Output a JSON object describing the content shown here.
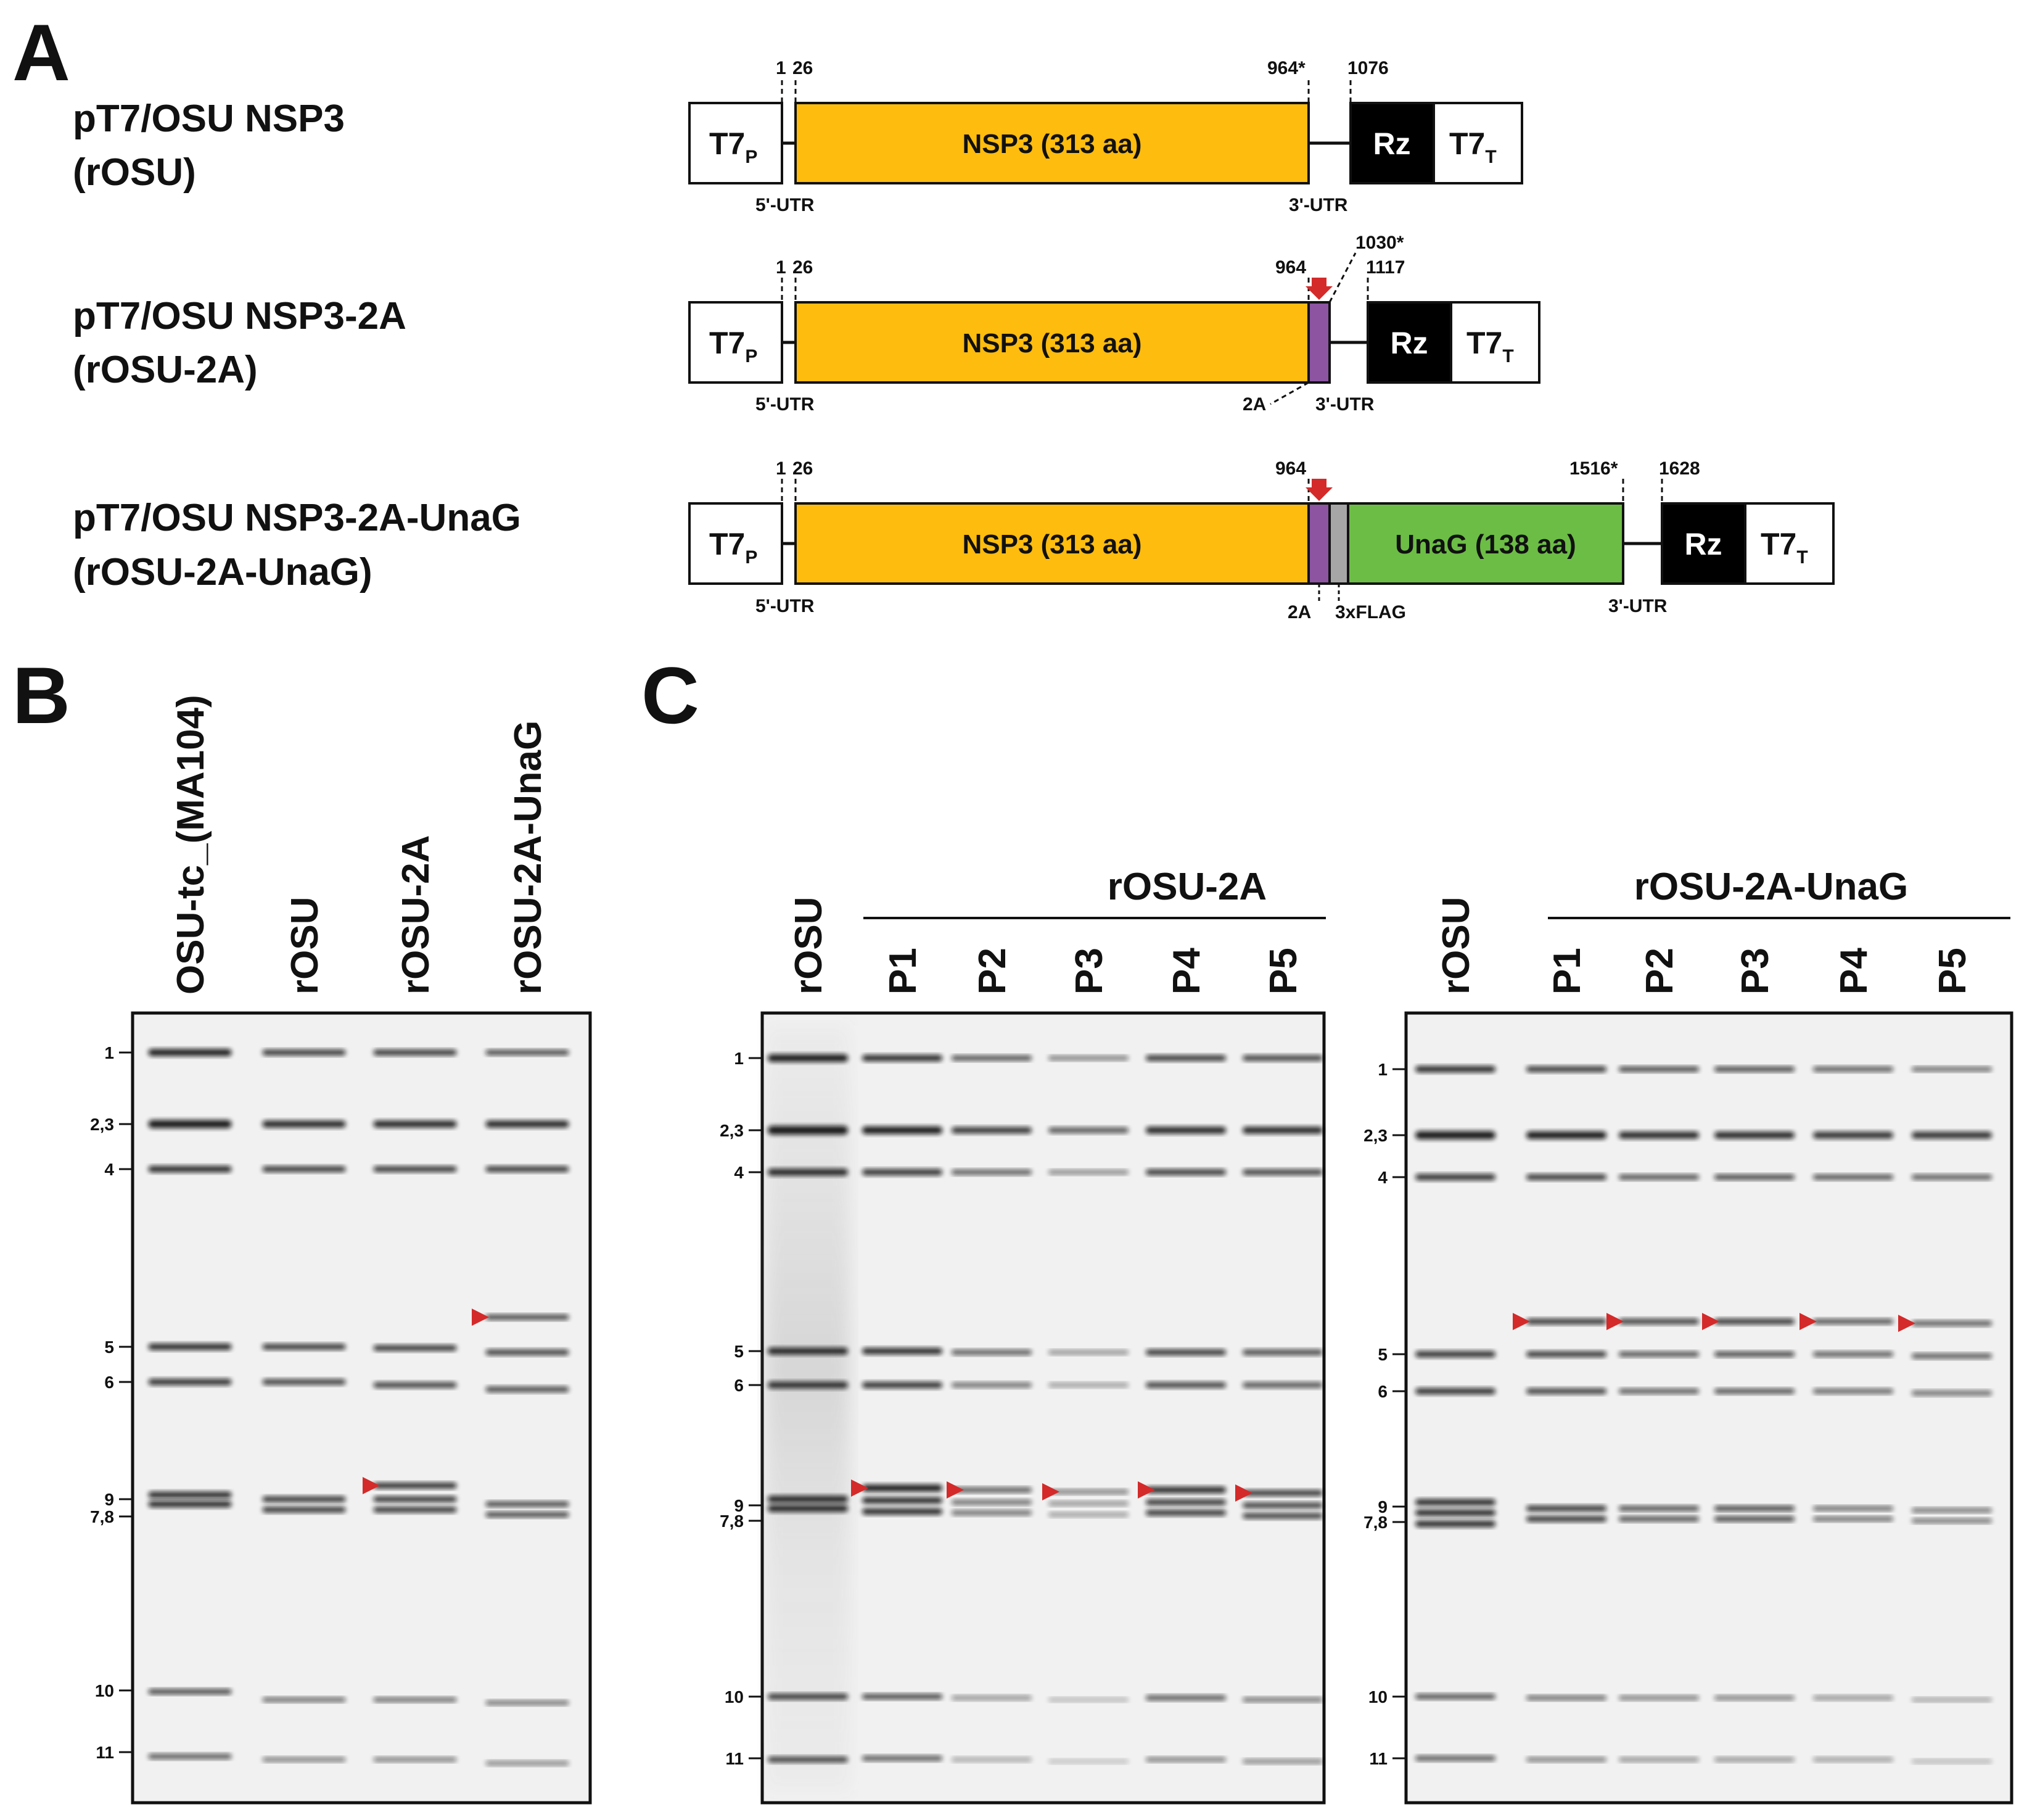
{
  "panel_a": {
    "letter": "A",
    "common": {
      "promoter": "T7",
      "promoter_sub": "P",
      "terminator": "T7",
      "terminator_sub": "T",
      "ribozyme": "Rz",
      "utr5": "5'-UTR",
      "utr3": "3'-UTR",
      "nsp3": "NSP3 (313 aa)"
    },
    "constructs": [
      {
        "name": "pT7/OSU NSP3",
        "alias": "(rOSU)",
        "nt": [
          "1",
          "26",
          "964*",
          "1076"
        ]
      },
      {
        "name": "pT7/OSU NSP3-2A",
        "alias": "(rOSU-2A)",
        "nt": [
          "1",
          "26",
          "964",
          "1030*",
          "1117"
        ],
        "tag_2a": "2A"
      },
      {
        "name": "pT7/OSU NSP3-2A-UnaG",
        "alias": "(rOSU-2A-UnaG)",
        "nt": [
          "1",
          "26",
          "964",
          "1516*",
          "1628"
        ],
        "tag_2a": "2A",
        "flag": "3xFLAG",
        "unag": "UnaG (138 aa)"
      }
    ],
    "colors": {
      "nsp3": "#FDBC0E",
      "t2a": "#8C54A1",
      "flag": "#A6A6A6",
      "unag": "#6CBD45",
      "arrow": "#D42A2A"
    }
  },
  "panel_b": {
    "letter": "B",
    "lanes": [
      "OSU-tc_(MA104)",
      "rOSU",
      "rOSU-2A",
      "rOSU-2A-UnaG"
    ],
    "markers": [
      "1",
      "2,3",
      "4",
      "5",
      "6",
      "9",
      "7,8",
      "10",
      "11"
    ]
  },
  "panel_c": {
    "letter": "C",
    "gels": [
      {
        "ref_lane": "rOSU",
        "group": "rOSU-2A",
        "lanes": [
          "P1",
          "P2",
          "P3",
          "P4",
          "P5"
        ],
        "markers": [
          "1",
          "2,3",
          "4",
          "5",
          "6",
          "9",
          "7,8",
          "10",
          "11"
        ]
      },
      {
        "ref_lane": "rOSU",
        "group": "rOSU-2A-UnaG",
        "lanes": [
          "P1",
          "P2",
          "P3",
          "P4",
          "P5"
        ],
        "markers": [
          "1",
          "2,3",
          "4",
          "5",
          "6",
          "9",
          "7,8",
          "10",
          "11"
        ]
      }
    ],
    "arrow_color": "#D42A2A"
  }
}
